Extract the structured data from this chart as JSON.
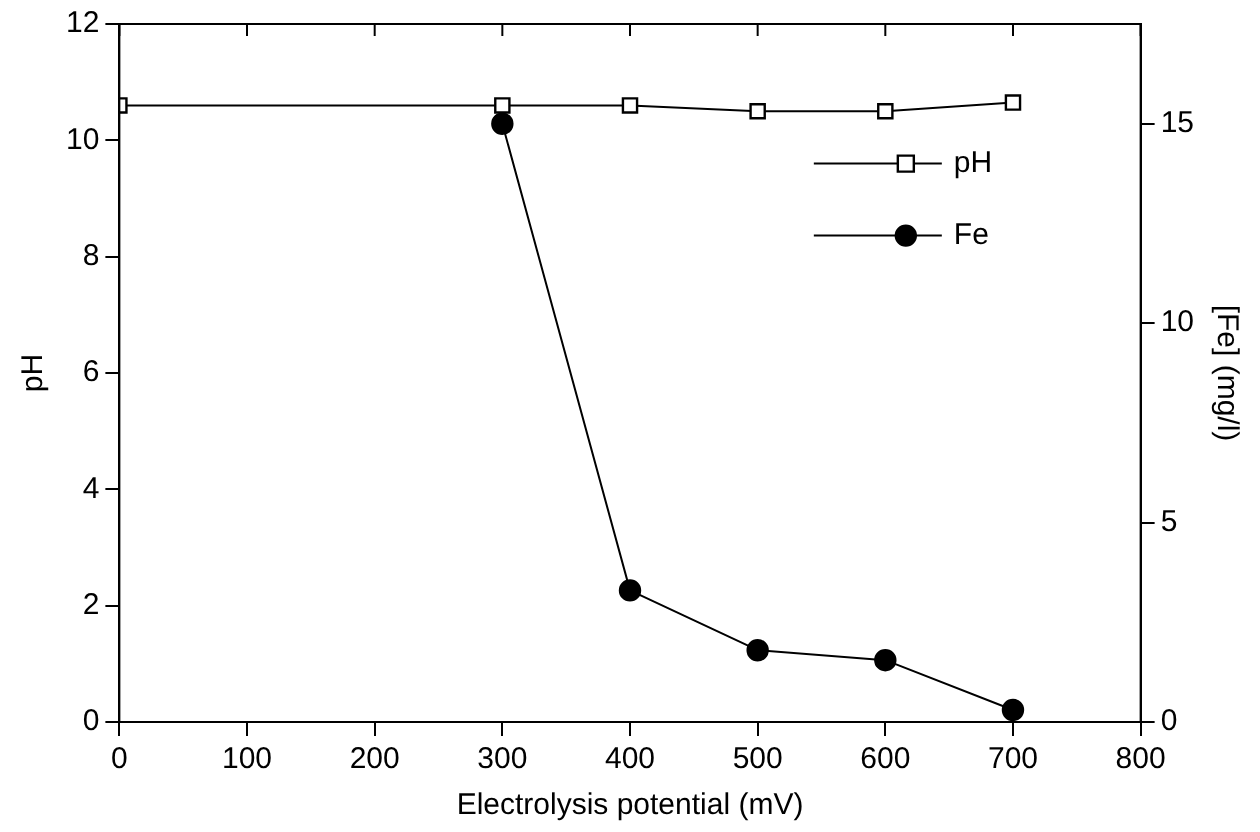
{
  "chart_data": {
    "type": "line",
    "xlabel": "Electrolysis potential (mV)",
    "ylabel": "pH",
    "y2label": "[Fe] (mg/l)",
    "xlim": [
      0,
      800
    ],
    "xticks": [
      0,
      100,
      200,
      300,
      400,
      500,
      600,
      700,
      800
    ],
    "ylim": [
      0,
      12
    ],
    "yticks": [
      0,
      2,
      4,
      6,
      8,
      10,
      12
    ],
    "y2lim": [
      0,
      17.5
    ],
    "y2ticks": [
      0,
      5,
      10,
      15
    ],
    "grid": false,
    "legend": "right",
    "line_style": "solid",
    "series": [
      {
        "name": "pH",
        "color": "#000000",
        "marker": "square",
        "x": [
          0,
          300,
          400,
          500,
          600,
          700
        ],
        "values": [
          10.6,
          10.6,
          10.6,
          10.5,
          10.5,
          10.65
        ]
      },
      {
        "name": "Fe",
        "color": "#000000",
        "marker": "circle",
        "axis": "y2",
        "x": [
          300,
          400,
          500,
          600,
          700
        ],
        "values": [
          15.0,
          3.3,
          1.8,
          1.55,
          0.3
        ]
      }
    ]
  }
}
